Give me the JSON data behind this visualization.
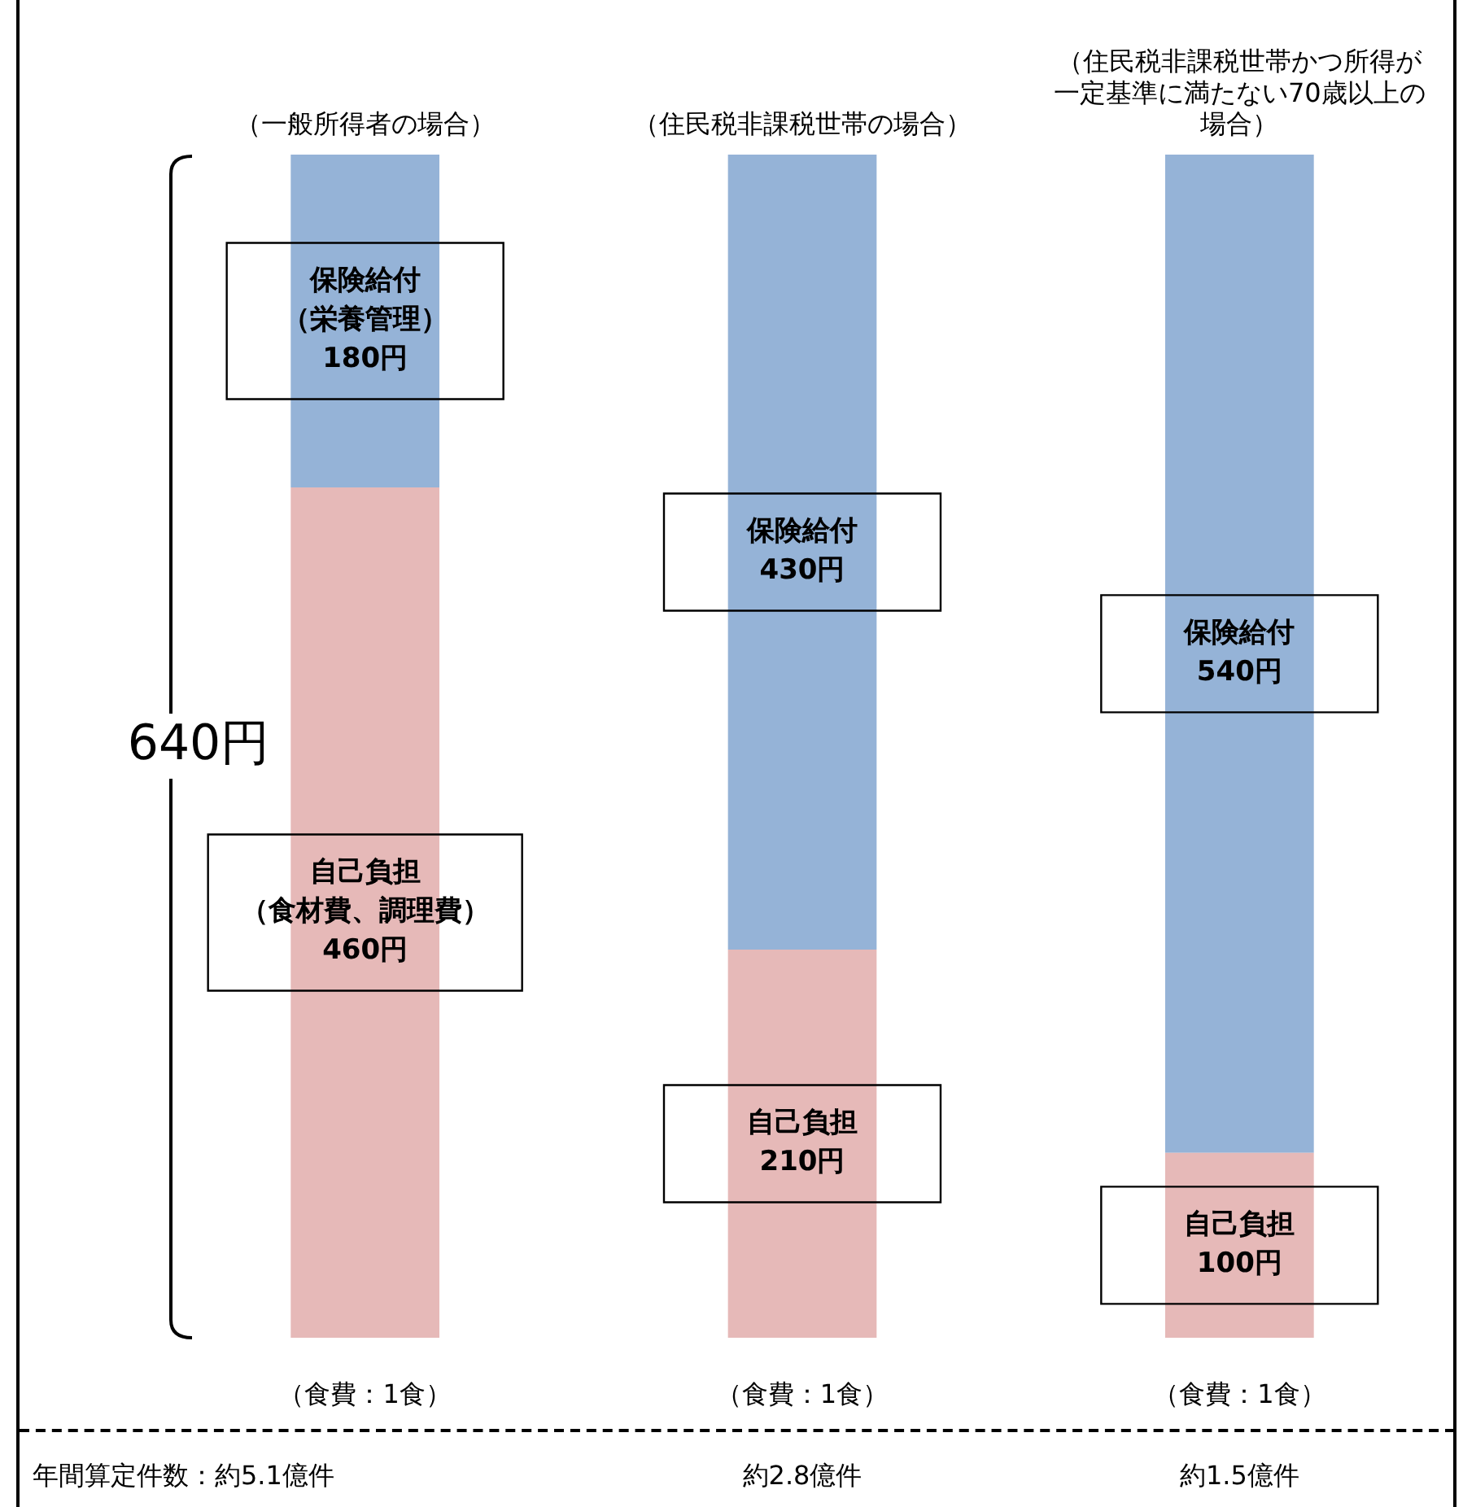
{
  "chart_data": {
    "type": "bar",
    "stacked": true,
    "categories": [
      "（一般所得者の場合）",
      "（住民税非課税世帯の場合）",
      "（住民税非課税世帯かつ所得が一定基準に満たない70歳以上の場合）"
    ],
    "ylim": [
      0,
      640
    ],
    "tick_labels": "x",
    "grid": false,
    "legend": false,
    "series": [
      {
        "color": "#e6b9b8",
        "values": [
          460,
          210,
          100
        ],
        "value_labels": [
          "自己負担（食材費、調理費）460円",
          "自己負担210円",
          "自己負担100円"
        ]
      },
      {
        "color": "#95b3d7",
        "values": [
          180,
          430,
          540
        ],
        "value_labels": [
          "保険給付（栄養管理）180円",
          "保険給付430円",
          "保険給付540円"
        ]
      }
    ],
    "annotations": [
      "640円",
      "（食費：1食）",
      "（食費：1食）",
      "（食費：1食）",
      "年間算定件数：約5.1億件",
      "約2.8億件",
      "約1.5億件"
    ]
  }
}
